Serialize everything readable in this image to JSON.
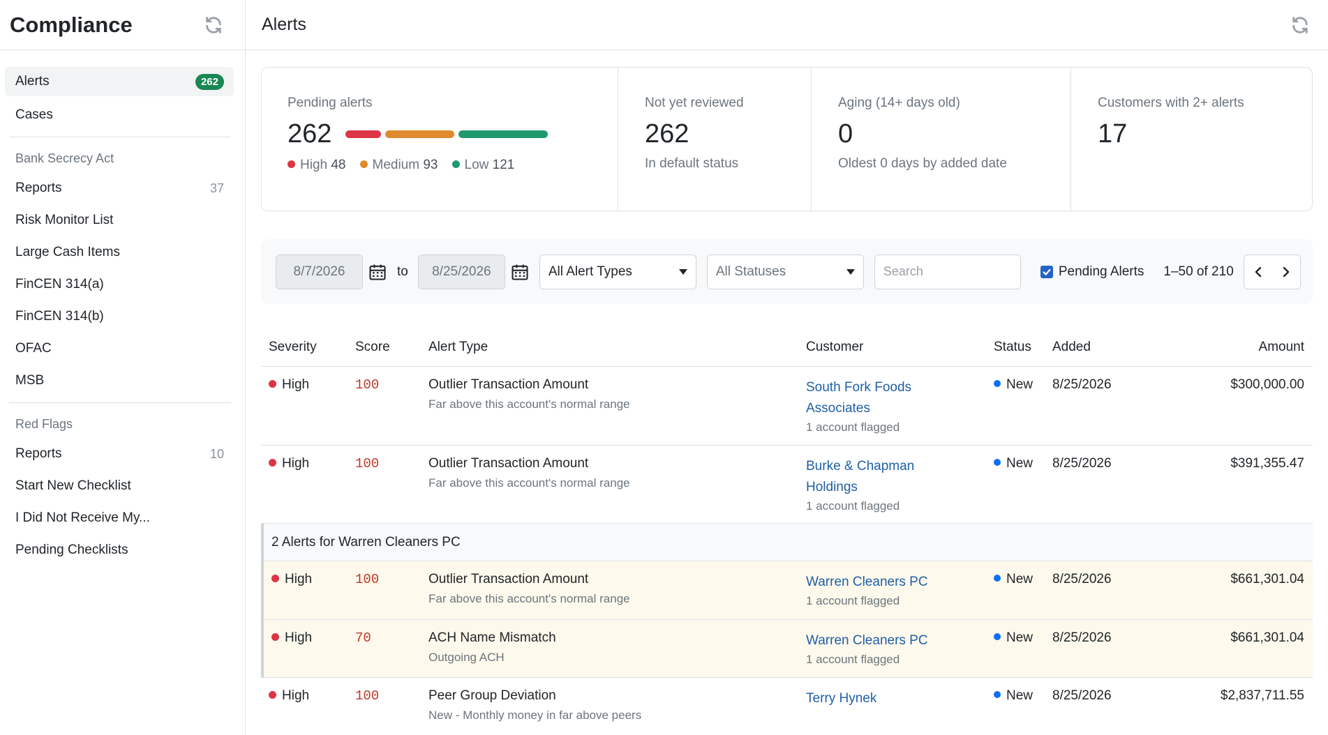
{
  "sidebar": {
    "title": "Compliance",
    "items_top": [
      {
        "label": "Alerts",
        "badge": "262"
      },
      {
        "label": "Cases"
      }
    ],
    "section_bsa": {
      "title": "Bank Secrecy Act",
      "items": [
        {
          "label": "Reports",
          "count": "37"
        },
        {
          "label": "Risk Monitor List"
        },
        {
          "label": "Large Cash Items"
        },
        {
          "label": "FinCEN 314(a)"
        },
        {
          "label": "FinCEN 314(b)"
        },
        {
          "label": "OFAC"
        },
        {
          "label": "MSB"
        }
      ]
    },
    "section_rf": {
      "title": "Red Flags",
      "items": [
        {
          "label": "Reports",
          "count": "10"
        },
        {
          "label": "Start New Checklist"
        },
        {
          "label": "I Did Not Receive My..."
        },
        {
          "label": "Pending Checklists"
        }
      ]
    }
  },
  "header": {
    "title": "Alerts"
  },
  "stats": {
    "pending": {
      "label": "Pending alerts",
      "value": "262",
      "high_label": "High",
      "high": "48",
      "medium_label": "Medium",
      "medium": "93",
      "low_label": "Low",
      "low": "121",
      "high_color": "#dc3545",
      "medium_color": "#e08a2e",
      "low_color": "#1f9a6f"
    },
    "not_reviewed": {
      "label": "Not yet reviewed",
      "value": "262",
      "sub": "In default status"
    },
    "aging": {
      "label": "Aging (14+ days old)",
      "value": "0",
      "sub": "Oldest 0 days by added date"
    },
    "repeat": {
      "label": "Customers with 2+ alerts",
      "value": "17"
    }
  },
  "filters": {
    "date_from": "8/7/2026",
    "to_label": "to",
    "date_to": "8/25/2026",
    "alert_type": "All Alert Types",
    "status": "All Statuses",
    "search_placeholder": "Search",
    "pending_checkbox_label": "Pending Alerts",
    "pending_checked": true,
    "range": "1–50 of 210"
  },
  "table": {
    "headers": {
      "severity": "Severity",
      "score": "Score",
      "type": "Alert Type",
      "customer": "Customer",
      "status": "Status",
      "added": "Added",
      "amount": "Amount"
    },
    "rows": [
      {
        "severity": "High",
        "score": "100",
        "type": "Outlier Transaction Amount",
        "type_sub": "Far above this account's normal range",
        "customer": "South Fork Foods Associates",
        "customer_sub": "1 account flagged",
        "status": "New",
        "added": "8/25/2026",
        "amount": "$300,000.00"
      },
      {
        "severity": "High",
        "score": "100",
        "type": "Outlier Transaction Amount",
        "type_sub": "Far above this account's normal range",
        "customer": "Burke & Chapman Holdings",
        "customer_sub": "1 account flagged",
        "status": "New",
        "added": "8/25/2026",
        "amount": "$391,355.47"
      }
    ],
    "group": {
      "title": "2 Alerts for Warren Cleaners PC",
      "rows": [
        {
          "severity": "High",
          "score": "100",
          "type": "Outlier Transaction Amount",
          "type_sub": "Far above this account's normal range",
          "customer": "Warren Cleaners PC",
          "customer_sub": "1 account flagged",
          "status": "New",
          "added": "8/25/2026",
          "amount": "$661,301.04"
        },
        {
          "severity": "High",
          "score": "70",
          "type": "ACH Name Mismatch",
          "type_sub": "Outgoing ACH",
          "customer": "Warren Cleaners PC",
          "customer_sub": "1 account flagged",
          "status": "New",
          "added": "8/25/2026",
          "amount": "$661,301.04"
        }
      ]
    },
    "after_rows": [
      {
        "severity": "High",
        "score": "100",
        "type": "Peer Group Deviation",
        "type_sub": "New - Monthly money in far above peers",
        "customer": "Terry Hynek",
        "status": "New",
        "added": "8/25/2026",
        "amount": "$2,837,711.55"
      }
    ]
  }
}
